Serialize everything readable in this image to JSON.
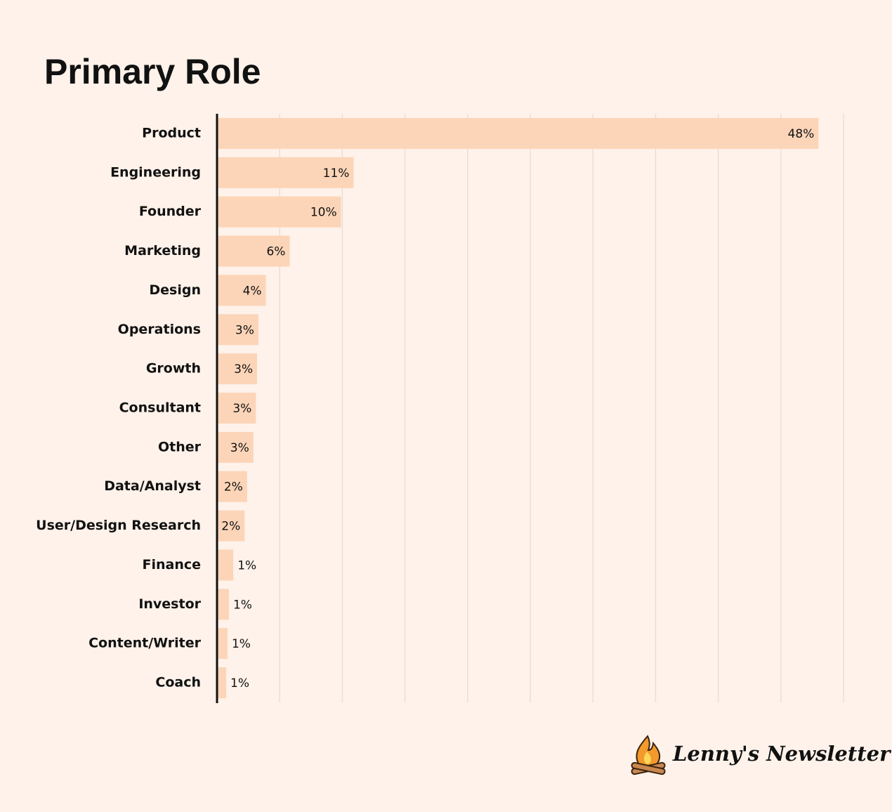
{
  "chart_data": {
    "type": "hbar",
    "title": "Primary Role",
    "categories": [
      "Product",
      "Engineering",
      "Founder",
      "Marketing",
      "Design",
      "Operations",
      "Growth",
      "Consultant",
      "Other",
      "Data/Analyst",
      "User/Design Research",
      "Finance",
      "Investor",
      "Content/Writer",
      "Coach"
    ],
    "values": [
      48,
      10.9,
      9.9,
      5.8,
      3.9,
      3.3,
      3.2,
      3.1,
      2.9,
      2.4,
      2.2,
      1.3,
      0.95,
      0.84,
      0.73
    ],
    "value_labels": [
      "48%",
      "11%",
      "10%",
      "6%",
      "4%",
      "3%",
      "3%",
      "3%",
      "3%",
      "2%",
      "2%",
      "1%",
      "1%",
      "1%",
      "1%"
    ],
    "color": "#fcd5b8",
    "xlim": [
      0,
      50
    ],
    "xticks": [
      0,
      5,
      10,
      15,
      20,
      25,
      30,
      35,
      40,
      45,
      50
    ],
    "grid": true
  },
  "brand": "Lenny's Newsletter"
}
